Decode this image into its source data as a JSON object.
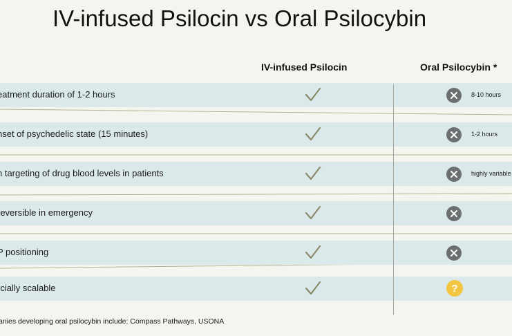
{
  "title": "IV-infused Psilocin vs Oral Psilocybin",
  "columns": {
    "iv": "IV-infused Psilocin",
    "oral": "Oral Psilocybin *"
  },
  "rows": [
    {
      "label": "eatment duration of 1-2 hours",
      "iv": "check-icon",
      "oral": "x-icon",
      "oral_note": "8-10 hours"
    },
    {
      "label": "nset of psychedelic state (15 minutes)",
      "iv": "check-icon",
      "oral": "x-icon",
      "oral_note": "1-2 hours"
    },
    {
      "label": "n targeting of drug blood levels in patients",
      "iv": "check-icon",
      "oral": "x-icon",
      "oral_note": "highly variable"
    },
    {
      "label": "reversible in emergency",
      "iv": "check-icon",
      "oral": "x-icon",
      "oral_note": ""
    },
    {
      "label": "P positioning",
      "iv": "check-icon",
      "oral": "x-icon",
      "oral_note": ""
    },
    {
      "label": "rcially scalable",
      "iv": "check-icon",
      "oral": "question-icon",
      "oral_note": "",
      "oral_symbol": "?"
    }
  ],
  "footnote": "anies developing oral psilocybin include: Compass Pathways, USONA",
  "colors": {
    "background": "#f5f5f0",
    "row": "#dce9eb",
    "check": "#8a8a6a",
    "x": "#6b6f70",
    "question": "#f2c640",
    "separator": "#b3b38f"
  }
}
